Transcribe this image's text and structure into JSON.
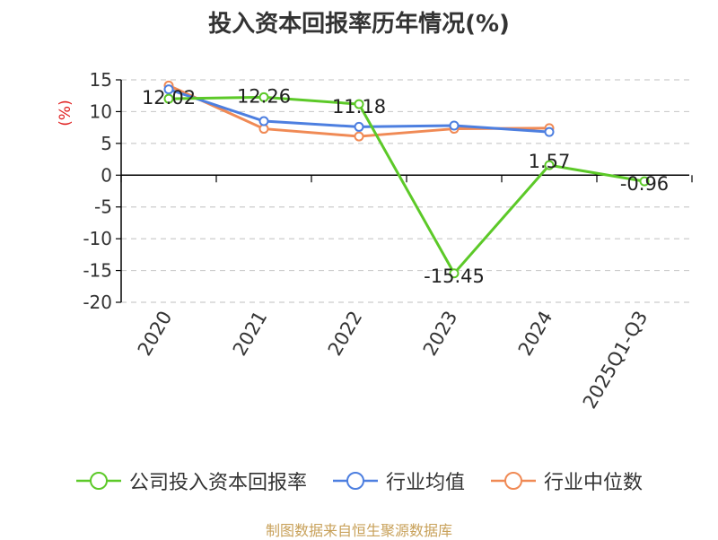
{
  "chart_data": {
    "type": "line",
    "title": "投入资本回报率历年情况(%)",
    "ylabel": "(%)",
    "xlabel": "",
    "categories": [
      "2020",
      "2021",
      "2022",
      "2023",
      "2024",
      "2025Q1-Q3"
    ],
    "ylim": [
      -20,
      15
    ],
    "yticks": [
      15,
      10,
      5,
      0,
      -5,
      -10,
      -15,
      -20
    ],
    "grid": true,
    "legend_position": "bottom",
    "series": [
      {
        "name": "公司投入资本回报率",
        "color": "#5cc928",
        "values": [
          12.02,
          12.26,
          11.18,
          -15.45,
          1.57,
          -0.96
        ],
        "labels": [
          "12.02",
          "12.26",
          "11.18",
          "-15.45",
          "1.57",
          "-0.96"
        ]
      },
      {
        "name": "行业均值",
        "color": "#4d7fe0",
        "values": [
          13.5,
          8.5,
          7.6,
          7.8,
          6.8,
          null
        ]
      },
      {
        "name": "行业中位数",
        "color": "#f08a55",
        "values": [
          14.1,
          7.3,
          6.1,
          7.3,
          7.4,
          null
        ]
      }
    ]
  },
  "source_text": "制图数据来自恒生聚源数据库",
  "colors": {
    "axis": "#000000",
    "grid": "#cccccc",
    "ylabel": "#e02020",
    "source": "#c8a15a"
  }
}
